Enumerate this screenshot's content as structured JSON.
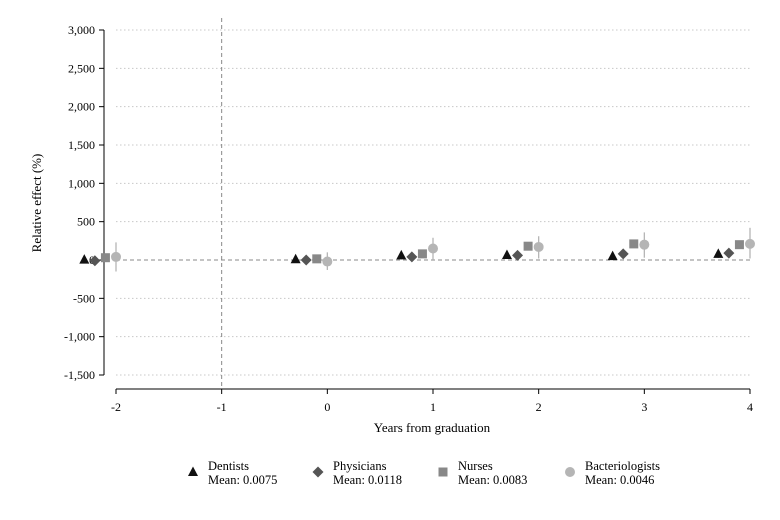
{
  "chart_data": {
    "type": "scatter",
    "title": "",
    "xlabel": "Years from graduation",
    "ylabel": "Relative effect (%)",
    "xlim": [
      -2,
      4
    ],
    "ylim": [
      -1500,
      3000
    ],
    "x_ticks": [
      -2,
      -1,
      0,
      1,
      2,
      3,
      4
    ],
    "x_tick_labels": [
      "-2",
      "-1",
      "0",
      "1",
      "2",
      "3",
      "4"
    ],
    "y_ticks": [
      3000,
      2500,
      2000,
      1500,
      1000,
      500,
      0,
      -500,
      -1000,
      -1500
    ],
    "y_tick_labels": [
      "3,000",
      "2,500",
      "2,000",
      "1,500",
      "1,000",
      "500",
      "0",
      "-500",
      "-1,000",
      "-1,500"
    ],
    "grid": "horizontal dotted",
    "reference_lines": {
      "x": -1,
      "y": 0,
      "style": "dashed"
    },
    "legend_position": "bottom",
    "series": [
      {
        "name": "Dentists",
        "mean_label": "Mean: 0.0075",
        "marker": "triangle",
        "color": "#111111",
        "offset": -0.3,
        "x": [
          -2,
          0,
          1,
          2,
          3,
          4
        ],
        "y": [
          5,
          10,
          60,
          65,
          50,
          80
        ],
        "ci_low": [
          -40,
          -30,
          10,
          20,
          10,
          30
        ],
        "ci_high": [
          50,
          50,
          110,
          110,
          100,
          130
        ]
      },
      {
        "name": "Physicians",
        "mean_label": "Mean: 0.0118",
        "marker": "diamond",
        "color": "#555555",
        "offset": -0.2,
        "x": [
          -2,
          0,
          1,
          2,
          3,
          4
        ],
        "y": [
          -10,
          0,
          40,
          60,
          80,
          90
        ],
        "ci_low": [
          -30,
          -20,
          20,
          30,
          50,
          60
        ],
        "ci_high": [
          10,
          20,
          60,
          90,
          110,
          120
        ]
      },
      {
        "name": "Nurses",
        "mean_label": "Mean: 0.0083",
        "marker": "square",
        "color": "#888888",
        "offset": -0.1,
        "x": [
          -2,
          0,
          1,
          2,
          3,
          4
        ],
        "y": [
          30,
          15,
          80,
          180,
          210,
          200
        ],
        "ci_low": [
          10,
          0,
          50,
          150,
          170,
          170
        ],
        "ci_high": [
          50,
          30,
          110,
          210,
          250,
          230
        ]
      },
      {
        "name": "Bacteriologists",
        "mean_label": "Mean: 0.0046",
        "marker": "circle",
        "color": "#b5b5b5",
        "offset": 0.0,
        "x": [
          -2,
          0,
          1,
          2,
          3,
          4
        ],
        "y": [
          40,
          -20,
          150,
          170,
          200,
          210
        ],
        "ci_low": [
          -150,
          -130,
          10,
          20,
          30,
          20
        ],
        "ci_high": [
          230,
          100,
          290,
          310,
          360,
          420
        ]
      }
    ]
  }
}
